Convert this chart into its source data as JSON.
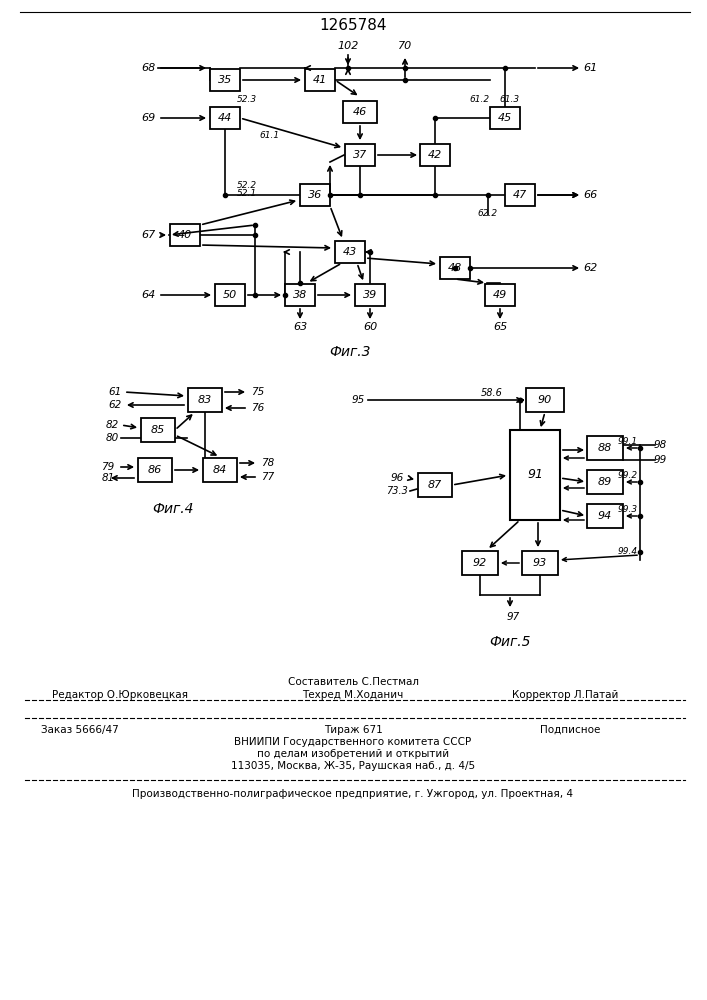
{
  "title": "1265784",
  "fig3_caption": "Фиг.3",
  "fig4_caption": "Фиг.4",
  "fig5_caption": "Фиг.5",
  "footer_sestavitel": "Составитель С.Пестмал",
  "footer_tehred": "Техред М.Ходанич",
  "footer_redaktor": "Редактор О.Юрковецкая",
  "footer_korrektor": "Корректор Л.Патай",
  "footer_zakaz": "Заказ 5666/47",
  "footer_tirazh": "Тираж 671",
  "footer_podpisnoe": "Подписное",
  "footer_vniipи": "ВНИИПИ Государственного комитета СССР",
  "footer_dela": "по делам изобретений и открытий",
  "footer_addr": "113035, Москва, Ж-35, Раушская наб., д. 4/5",
  "footer_pred": "Производственно-полиграфическое предприятие, г. Ужгород, ул. Проектная, 4"
}
